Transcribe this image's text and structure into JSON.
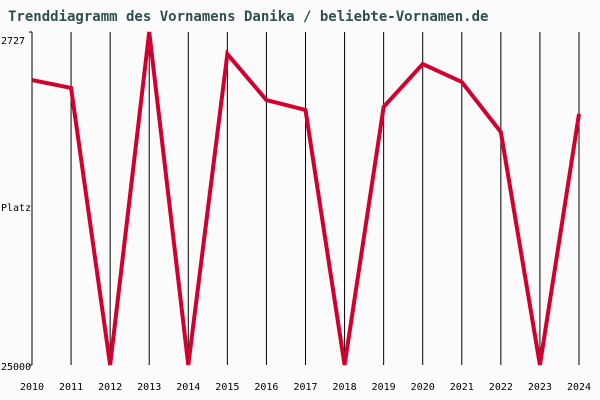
{
  "chart_data": {
    "type": "line",
    "title": "Trenddiagramm des Vornamens Danika / beliebte-Vornamen.de",
    "y_label": "Platz",
    "x": [
      2010,
      2011,
      2012,
      2013,
      2014,
      2015,
      2016,
      2017,
      2018,
      2019,
      2020,
      2021,
      2022,
      2023,
      2024
    ],
    "values": [
      5940,
      6470,
      25000,
      2727,
      25000,
      4200,
      7280,
      7940,
      25000,
      7740,
      4870,
      6070,
      9420,
      25000,
      8210
    ],
    "color": "#d2002e",
    "xlim": [
      2010,
      2024
    ],
    "xticks": [
      2010,
      2011,
      2012,
      2013,
      2014,
      2015,
      2016,
      2017,
      2018,
      2019,
      2020,
      2021,
      2022,
      2023,
      2024
    ],
    "ylim": [
      2727,
      25000
    ],
    "yticks": [
      2727,
      25000
    ],
    "y_inverted": true,
    "grid": true
  }
}
